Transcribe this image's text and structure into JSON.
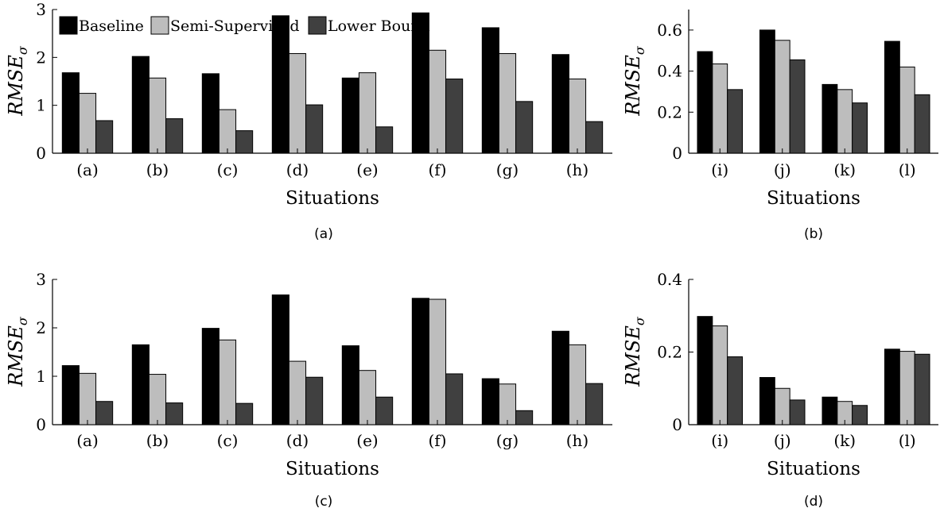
{
  "legend": [
    "Baseline",
    "Semi-Supervised",
    "Lower Bound"
  ],
  "colors": [
    "#000000",
    "#bdbdbd",
    "#404040"
  ],
  "chart_data": [
    {
      "type": "bar",
      "caption": "(a)",
      "xlabel": "Situations",
      "ylabel": "RMSE",
      "ylabel_sub": "σ",
      "ylim": [
        0,
        3
      ],
      "yticks": [
        "0",
        "1",
        "2",
        "3"
      ],
      "categories": [
        "(a)",
        "(b)",
        "(c)",
        "(d)",
        "(e)",
        "(f)",
        "(g)",
        "(h)"
      ],
      "series": [
        {
          "name": "Baseline",
          "values": [
            1.68,
            2.02,
            1.66,
            2.87,
            1.57,
            2.93,
            2.62,
            2.06
          ]
        },
        {
          "name": "Semi-Supervised",
          "values": [
            1.25,
            1.57,
            0.91,
            2.08,
            1.68,
            2.15,
            2.08,
            1.55
          ]
        },
        {
          "name": "Lower Bound",
          "values": [
            0.68,
            0.72,
            0.47,
            1.01,
            0.55,
            1.55,
            1.08,
            0.66
          ]
        }
      ]
    },
    {
      "type": "bar",
      "caption": "(b)",
      "xlabel": "Situations",
      "ylabel": "RMSE",
      "ylabel_sub": "σ",
      "ylim": [
        0,
        0.7
      ],
      "yticks": [
        "0",
        "0.2",
        "0.4",
        "0.6"
      ],
      "categories": [
        "(i)",
        "(j)",
        "(k)",
        "(l)"
      ],
      "series": [
        {
          "name": "Baseline",
          "values": [
            0.495,
            0.6,
            0.335,
            0.545
          ]
        },
        {
          "name": "Semi-Supervised",
          "values": [
            0.435,
            0.55,
            0.31,
            0.42
          ]
        },
        {
          "name": "Lower Bound",
          "values": [
            0.31,
            0.455,
            0.245,
            0.285
          ]
        }
      ]
    },
    {
      "type": "bar",
      "caption": "(c)",
      "xlabel": "Situations",
      "ylabel": "RMSE",
      "ylabel_sub": "σ",
      "ylim": [
        0,
        3
      ],
      "yticks": [
        "0",
        "1",
        "2",
        "3"
      ],
      "categories": [
        "(a)",
        "(b)",
        "(c)",
        "(d)",
        "(e)",
        "(f)",
        "(g)",
        "(h)"
      ],
      "series": [
        {
          "name": "Baseline",
          "values": [
            1.22,
            1.65,
            1.99,
            2.68,
            1.63,
            2.61,
            0.95,
            1.93
          ]
        },
        {
          "name": "Semi-Supervised",
          "values": [
            1.06,
            1.04,
            1.75,
            1.31,
            1.12,
            2.59,
            0.84,
            1.65
          ]
        },
        {
          "name": "Lower Bound",
          "values": [
            0.48,
            0.45,
            0.44,
            0.98,
            0.57,
            1.05,
            0.29,
            0.85
          ]
        }
      ]
    },
    {
      "type": "bar",
      "caption": "(d)",
      "xlabel": "Situations",
      "ylabel": "RMSE",
      "ylabel_sub": "σ",
      "ylim": [
        0,
        0.4
      ],
      "yticks": [
        "0",
        "0.2",
        "0.4"
      ],
      "categories": [
        "(i)",
        "(j)",
        "(k)",
        "(l)"
      ],
      "series": [
        {
          "name": "Baseline",
          "values": [
            0.298,
            0.13,
            0.076,
            0.208
          ]
        },
        {
          "name": "Semi-Supervised",
          "values": [
            0.272,
            0.1,
            0.064,
            0.202
          ]
        },
        {
          "name": "Lower Bound",
          "values": [
            0.187,
            0.068,
            0.053,
            0.194
          ]
        }
      ]
    }
  ]
}
